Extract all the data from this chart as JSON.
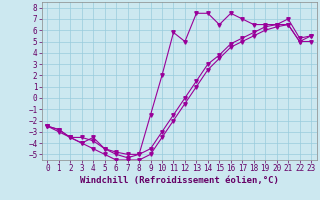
{
  "background_color": "#cce8f0",
  "grid_color": "#99ccdd",
  "line_color": "#990099",
  "marker": "v",
  "markersize": 2.5,
  "linewidth": 0.8,
  "xlim": [
    -0.5,
    23.5
  ],
  "ylim": [
    -5.5,
    8.5
  ],
  "xlabel": "Windchill (Refroidissement éolien,°C)",
  "xlabel_fontsize": 6.5,
  "xtick_labels": [
    "0",
    "1",
    "2",
    "3",
    "4",
    "5",
    "6",
    "7",
    "8",
    "9",
    "10",
    "11",
    "12",
    "13",
    "14",
    "15",
    "16",
    "17",
    "18",
    "19",
    "20",
    "21",
    "22",
    "23"
  ],
  "xticks": [
    0,
    1,
    2,
    3,
    4,
    5,
    6,
    7,
    8,
    9,
    10,
    11,
    12,
    13,
    14,
    15,
    16,
    17,
    18,
    19,
    20,
    21,
    22,
    23
  ],
  "yticks": [
    -5,
    -4,
    -3,
    -2,
    -1,
    0,
    1,
    2,
    3,
    4,
    5,
    6,
    7,
    8
  ],
  "tick_fontsize": 5.5,
  "line1_x": [
    0,
    1,
    2,
    3,
    4,
    5,
    6,
    7,
    8,
    9,
    10,
    11,
    12,
    13,
    14,
    15,
    16,
    17,
    18,
    19,
    20,
    21,
    22,
    23
  ],
  "line1_y": [
    -2.5,
    -3.0,
    -3.5,
    -3.5,
    -3.8,
    -4.5,
    -4.8,
    -5.0,
    -5.0,
    -1.5,
    2.0,
    5.8,
    5.0,
    7.5,
    7.5,
    6.5,
    7.5,
    7.0,
    6.5,
    6.5,
    6.5,
    6.5,
    5.0,
    5.5
  ],
  "line2_x": [
    0,
    1,
    2,
    3,
    4,
    5,
    6,
    7,
    8,
    9,
    10,
    11,
    12,
    13,
    14,
    15,
    16,
    17,
    18,
    19,
    20,
    21,
    22,
    23
  ],
  "line2_y": [
    -2.5,
    -2.8,
    -3.5,
    -4.0,
    -3.5,
    -4.5,
    -5.0,
    -5.3,
    -5.0,
    -4.5,
    -3.0,
    -1.5,
    0.0,
    1.5,
    3.0,
    3.8,
    4.8,
    5.3,
    5.8,
    6.3,
    6.5,
    7.0,
    5.3,
    5.5
  ],
  "line3_x": [
    0,
    1,
    2,
    3,
    4,
    5,
    6,
    7,
    8,
    9,
    10,
    11,
    12,
    13,
    14,
    15,
    16,
    17,
    18,
    19,
    20,
    21,
    22,
    23
  ],
  "line3_y": [
    -2.5,
    -2.8,
    -3.5,
    -4.0,
    -4.5,
    -5.0,
    -5.5,
    -5.5,
    -5.5,
    -5.0,
    -3.5,
    -2.0,
    -0.5,
    1.0,
    2.5,
    3.5,
    4.5,
    5.0,
    5.5,
    6.0,
    6.3,
    6.5,
    5.0,
    5.0
  ]
}
